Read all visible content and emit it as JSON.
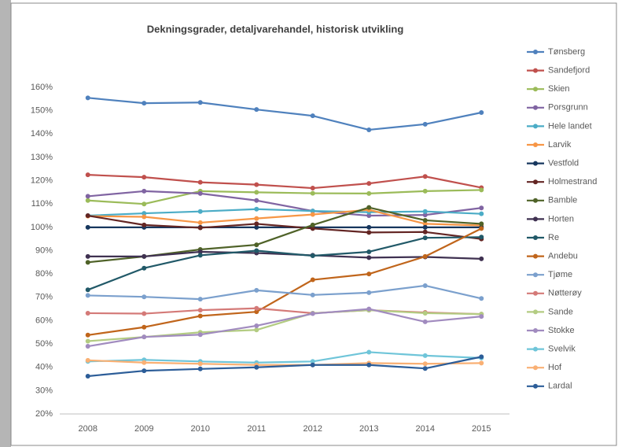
{
  "chart_data": {
    "type": "line",
    "title": "Dekningsgrader, detaljvarehandel, historisk utvikling",
    "categories": [
      "2008",
      "2009",
      "2010",
      "2011",
      "2012",
      "2013",
      "2014",
      "2015"
    ],
    "ylim": [
      20,
      160
    ],
    "yticks": [
      {
        "value": 20,
        "label": "20%"
      },
      {
        "value": 30,
        "label": "30%"
      },
      {
        "value": 40,
        "label": "40%"
      },
      {
        "value": 50,
        "label": "50%"
      },
      {
        "value": 60,
        "label": "60%"
      },
      {
        "value": 70,
        "label": "70%"
      },
      {
        "value": 80,
        "label": "80%"
      },
      {
        "value": 90,
        "label": "90%"
      },
      {
        "value": 100,
        "label": "100%"
      },
      {
        "value": 110,
        "label": "110%"
      },
      {
        "value": 120,
        "label": "120%"
      },
      {
        "value": 130,
        "label": "130%"
      },
      {
        "value": 140,
        "label": "140%"
      },
      {
        "value": 150,
        "label": "150%"
      },
      {
        "value": 160,
        "label": "160%"
      }
    ],
    "grid": false,
    "legend": "right",
    "series": [
      {
        "name": "Tønsberg",
        "color": "#4f81bd",
        "values": [
          155.5,
          153.2,
          153.5,
          150.5,
          147.8,
          141.8,
          144.2,
          149.2
        ]
      },
      {
        "name": "Sandefjord",
        "color": "#c0504d",
        "values": [
          122.5,
          121.5,
          119.3,
          118.3,
          116.8,
          118.8,
          121.8,
          117
        ]
      },
      {
        "name": "Skien",
        "color": "#9bbb59",
        "values": [
          111.5,
          110,
          115.5,
          115,
          114.6,
          114.5,
          115.5,
          116
        ]
      },
      {
        "name": "Porsgrunn",
        "color": "#8064a2",
        "values": [
          113.3,
          115.5,
          114.5,
          111.5,
          107,
          105,
          105.3,
          108.3
        ]
      },
      {
        "name": "Hele landet",
        "color": "#4bacc6",
        "values": [
          105,
          106,
          106.8,
          107.8,
          107,
          106.5,
          106.8,
          105.8
        ]
      },
      {
        "name": "Larvik",
        "color": "#f79646",
        "values": [
          104.8,
          104.5,
          102,
          103.8,
          105.5,
          107.5,
          101.5,
          100.8
        ]
      },
      {
        "name": "Vestfold",
        "color": "#17375e",
        "values": [
          100,
          100,
          100,
          100,
          100,
          100,
          100,
          100
        ]
      },
      {
        "name": "Holmestrand",
        "color": "#632523",
        "values": [
          105,
          101,
          99.8,
          101.5,
          99.5,
          97.8,
          98,
          95
        ]
      },
      {
        "name": "Bamble",
        "color": "#4f6228",
        "values": [
          85,
          87.5,
          90.5,
          92.5,
          101,
          108.5,
          103,
          101.5
        ]
      },
      {
        "name": "Horten",
        "color": "#3f3151",
        "values": [
          87.5,
          87.5,
          89.5,
          89,
          88,
          87,
          87.3,
          86.5
        ]
      },
      {
        "name": "Re",
        "color": "#215968",
        "values": [
          73.2,
          82.5,
          88,
          90,
          87.8,
          89.5,
          95.5,
          95.8
        ]
      },
      {
        "name": "Andebu",
        "color": "#c0651b",
        "values": [
          53.8,
          57.2,
          62,
          63.8,
          77.5,
          80,
          87.5,
          99.5
        ]
      },
      {
        "name": "Tjøme",
        "color": "#7ba0cd",
        "values": [
          70.8,
          70.2,
          69.2,
          73,
          71,
          72,
          75,
          69.5
        ]
      },
      {
        "name": "Nøtterøy",
        "color": "#d47a78",
        "values": [
          63.2,
          63,
          64.5,
          65.3,
          63.2,
          64.5,
          63.5,
          62.8
        ]
      },
      {
        "name": "Sande",
        "color": "#b3cc82",
        "values": [
          51.2,
          53,
          55,
          56,
          63.2,
          64.5,
          63.2,
          62.8
        ]
      },
      {
        "name": "Stokke",
        "color": "#a18bbf",
        "values": [
          49,
          53,
          54,
          57.8,
          63,
          65,
          59.5,
          61.8
        ]
      },
      {
        "name": "Svelvik",
        "color": "#6fc5d9",
        "values": [
          42.5,
          43.2,
          42.5,
          42,
          42.5,
          46.5,
          45,
          44
        ]
      },
      {
        "name": "Hof",
        "color": "#f9b074",
        "values": [
          43,
          42,
          41.5,
          41,
          41,
          41.8,
          41.5,
          41.8
        ]
      },
      {
        "name": "Lardal",
        "color": "#2c5d98",
        "values": [
          36.2,
          38.5,
          39.3,
          40,
          41,
          41,
          39.5,
          44.5
        ]
      }
    ]
  }
}
